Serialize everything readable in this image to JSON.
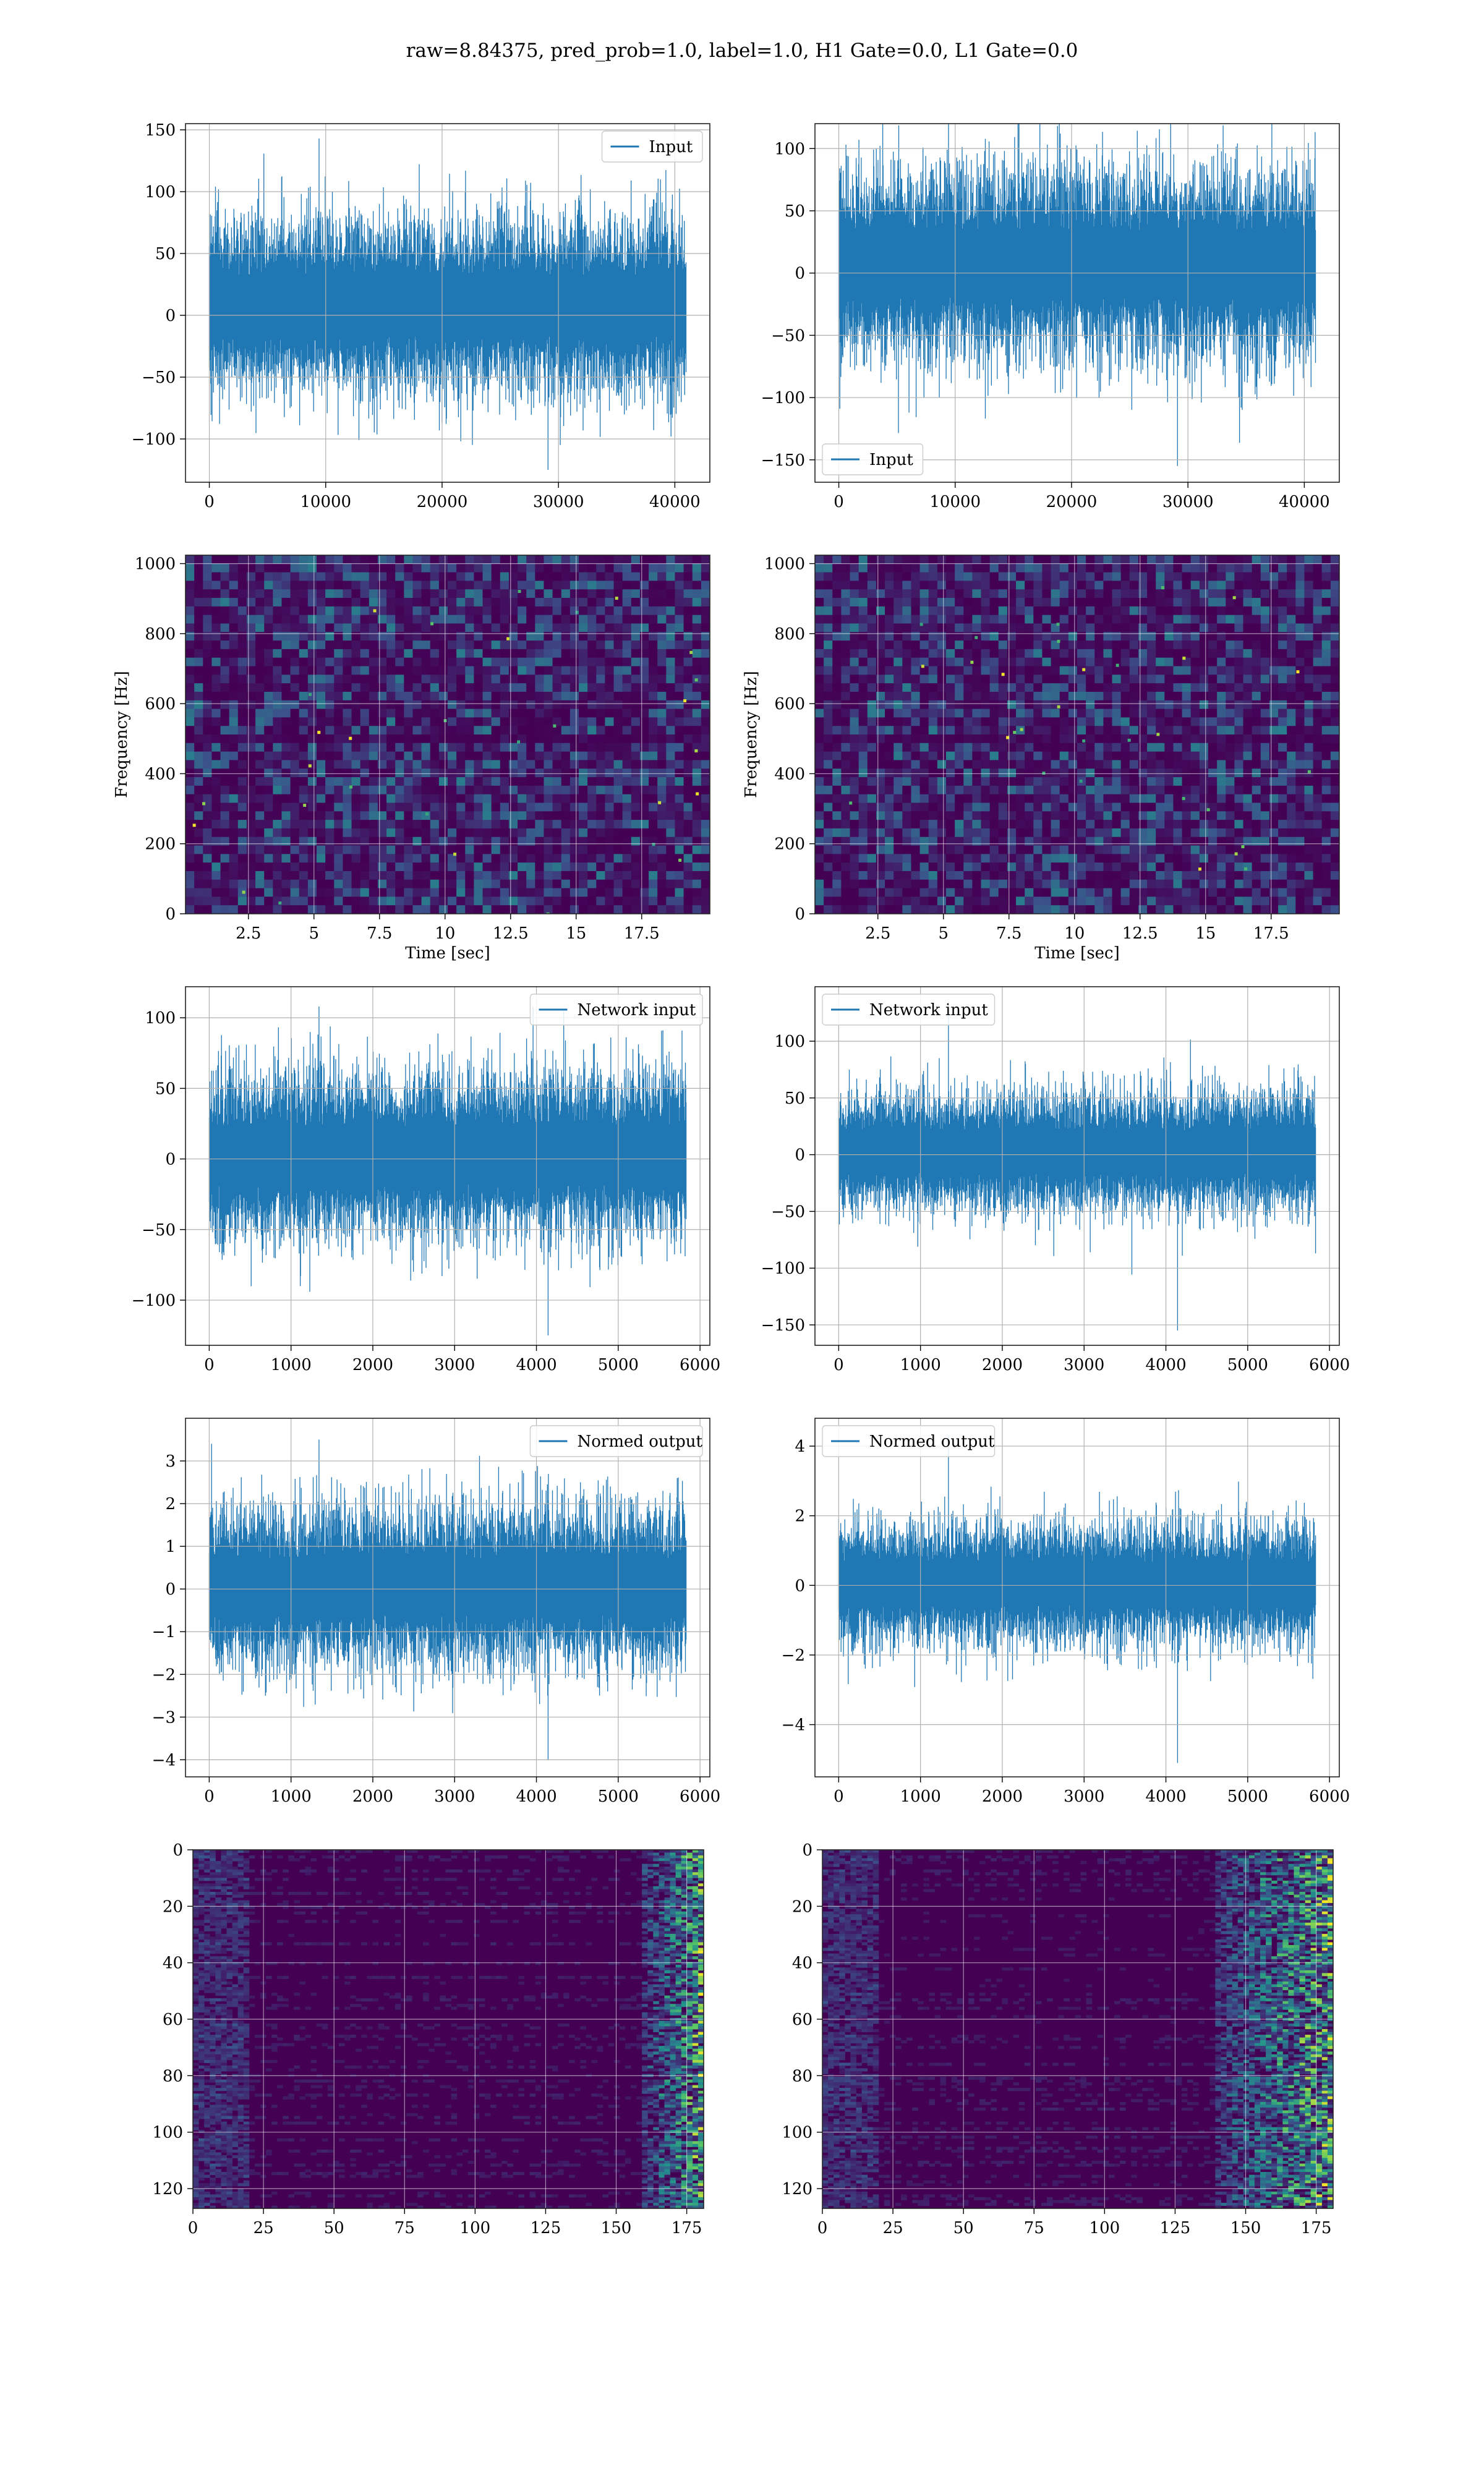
{
  "suptitle": "raw=8.84375, pred_prob=1.0, label=1.0, H1 Gate=0.0, L1 Gate=0.0",
  "colors": {
    "line": "#1f77b4",
    "grid": "#b0b0b0",
    "viridis_low": "#440154",
    "viridis_mid": "#21918c",
    "viridis_high": "#fde725"
  },
  "chart_data": [
    {
      "id": "input-h1",
      "type": "line",
      "legend": "Input",
      "legend_loc": "upper right",
      "series": [
        {
          "name": "Input",
          "envelope": {
            "x_start": 0,
            "x_end": 40960,
            "typical_low": -55,
            "typical_high": 70,
            "peak_low": -125,
            "peak_high": 143
          }
        }
      ],
      "xlim": [
        -2048,
        43008
      ],
      "ylim": [
        -135,
        155
      ],
      "xticks": [
        0,
        10000,
        20000,
        30000,
        40000
      ],
      "yticks": [
        -100,
        -50,
        0,
        50,
        100,
        150
      ],
      "grid": true
    },
    {
      "id": "input-l1",
      "type": "line",
      "legend": "Input",
      "legend_loc": "lower left",
      "series": [
        {
          "name": "Input",
          "envelope": {
            "x_start": 0,
            "x_end": 40960,
            "typical_low": -60,
            "typical_high": 75,
            "peak_low": -155,
            "peak_high": 135
          }
        }
      ],
      "xlim": [
        -2048,
        43008
      ],
      "ylim": [
        -168,
        120
      ],
      "xticks": [
        0,
        10000,
        20000,
        30000,
        40000
      ],
      "yticks": [
        -150,
        -100,
        -50,
        0,
        50,
        100
      ],
      "grid": true
    },
    {
      "id": "spec-h1",
      "type": "heatmap",
      "colormap": "viridis",
      "xlabel": "Time [sec]",
      "ylabel": "Frequency [Hz]",
      "xlim": [
        0.1,
        20.1
      ],
      "ylim": [
        0,
        1024
      ],
      "xticks": [
        2.5,
        5.0,
        7.5,
        10.0,
        12.5,
        15.0,
        17.5
      ],
      "yticks": [
        0,
        200,
        400,
        600,
        800,
        1000
      ],
      "grid": true
    },
    {
      "id": "spec-l1",
      "type": "heatmap",
      "colormap": "viridis",
      "xlabel": "Time [sec]",
      "ylabel": "Frequency [Hz]",
      "xlim": [
        0.1,
        20.1
      ],
      "ylim": [
        0,
        1024
      ],
      "xticks": [
        2.5,
        5.0,
        7.5,
        10.0,
        12.5,
        15.0,
        17.5
      ],
      "yticks": [
        0,
        200,
        400,
        600,
        800,
        1000
      ],
      "grid": true
    },
    {
      "id": "netin-h1",
      "type": "line",
      "legend": "Network input",
      "legend_loc": "upper right",
      "series": [
        {
          "name": "Network input",
          "envelope": {
            "x_start": 0,
            "x_end": 5830,
            "typical_low": -50,
            "typical_high": 55,
            "peak_low": -125,
            "peak_high": 108
          }
        }
      ],
      "xlim": [
        -290,
        6120
      ],
      "ylim": [
        -132,
        122
      ],
      "xticks": [
        0,
        1000,
        2000,
        3000,
        4000,
        5000,
        6000
      ],
      "yticks": [
        -100,
        -50,
        0,
        50,
        100
      ],
      "grid": true
    },
    {
      "id": "netin-l1",
      "type": "line",
      "legend": "Network input",
      "legend_loc": "upper left",
      "series": [
        {
          "name": "Network input",
          "envelope": {
            "x_start": 0,
            "x_end": 5830,
            "typical_low": -45,
            "typical_high": 50,
            "peak_low": -155,
            "peak_high": 135
          }
        }
      ],
      "xlim": [
        -290,
        6120
      ],
      "ylim": [
        -168,
        148
      ],
      "xticks": [
        0,
        1000,
        2000,
        3000,
        4000,
        5000,
        6000
      ],
      "yticks": [
        -150,
        -100,
        -50,
        0,
        50,
        100
      ],
      "grid": true
    },
    {
      "id": "normed-h1",
      "type": "line",
      "legend": "Normed output",
      "legend_loc": "upper right",
      "series": [
        {
          "name": "Normed output",
          "envelope": {
            "x_start": 0,
            "x_end": 5830,
            "typical_low": -1.6,
            "typical_high": 1.7,
            "peak_low": -4.0,
            "peak_high": 3.5
          }
        }
      ],
      "xlim": [
        -290,
        6120
      ],
      "ylim": [
        -4.4,
        4.0
      ],
      "xticks": [
        0,
        1000,
        2000,
        3000,
        4000,
        5000,
        6000
      ],
      "yticks": [
        -4,
        -3,
        -2,
        -1,
        0,
        1,
        2,
        3
      ],
      "grid": true
    },
    {
      "id": "normed-l1",
      "type": "line",
      "legend": "Normed output",
      "legend_loc": "upper left",
      "series": [
        {
          "name": "Normed output",
          "envelope": {
            "x_start": 0,
            "x_end": 5830,
            "typical_low": -1.5,
            "typical_high": 1.6,
            "peak_low": -5.1,
            "peak_high": 4.3
          }
        }
      ],
      "xlim": [
        -290,
        6120
      ],
      "ylim": [
        -5.5,
        4.8
      ],
      "xticks": [
        0,
        1000,
        2000,
        3000,
        4000,
        5000,
        6000
      ],
      "yticks": [
        -4,
        -2,
        0,
        2,
        4
      ],
      "grid": true
    },
    {
      "id": "feat-h1",
      "type": "heatmap",
      "colormap": "viridis",
      "xlim": [
        0,
        181
      ],
      "ylim": [
        127,
        0
      ],
      "xticks": [
        0,
        25,
        50,
        75,
        100,
        125,
        150,
        175
      ],
      "yticks": [
        0,
        20,
        40,
        60,
        80,
        100,
        120
      ],
      "grid": true,
      "bright_columns_from": 160
    },
    {
      "id": "feat-l1",
      "type": "heatmap",
      "colormap": "viridis",
      "xlim": [
        0,
        181
      ],
      "ylim": [
        127,
        0
      ],
      "xticks": [
        0,
        25,
        50,
        75,
        100,
        125,
        150,
        175
      ],
      "yticks": [
        0,
        20,
        40,
        60,
        80,
        100,
        120
      ],
      "grid": true,
      "bright_columns_from": 140
    }
  ]
}
